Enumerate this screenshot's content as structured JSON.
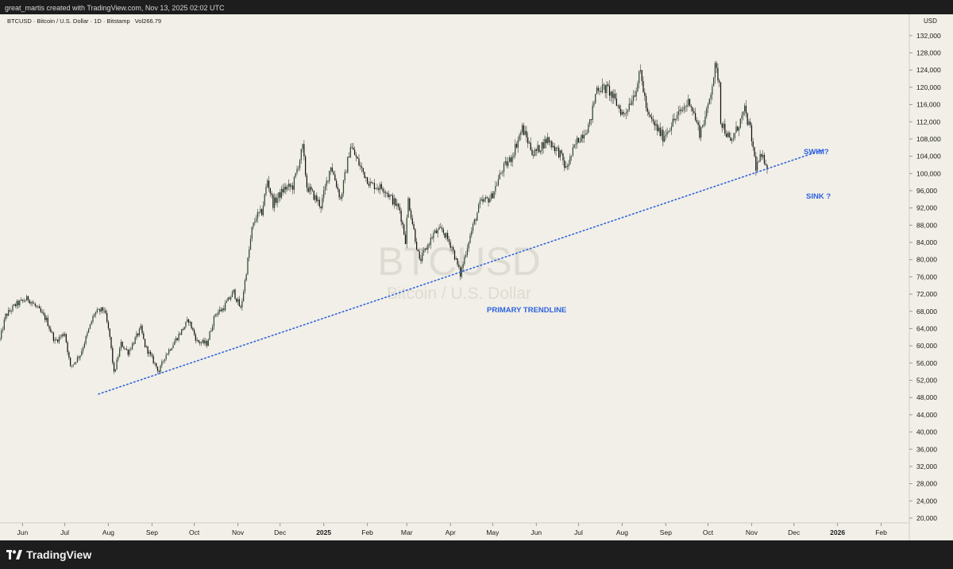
{
  "header": {
    "credit": "great_martis created with TradingView.com, Nov 13, 2025 02:02 UTC"
  },
  "symbol": {
    "info": "BTCUSD · Bitcoin / U.S. Dollar · 1D · Bitstamp",
    "volume_label": "Vol266.79"
  },
  "watermark": {
    "ticker": "BTCUSD",
    "name": "Bitcoin / U.S. Dollar"
  },
  "price_scale": {
    "currency": "USD"
  },
  "annotations": {
    "trendline_label": "PRIMARY TRENDLINE",
    "swim_label": "SWIM?",
    "sink_label": "SINK ?"
  },
  "colors": {
    "background": "#f1efe7",
    "candle_up": "#2e4a2e",
    "candle_down": "#111111",
    "wick": "#555555",
    "annotation_blue": "#2f62e0",
    "watermark": "#d9d6cd"
  },
  "footer": {
    "logo_text": "TradingView"
  },
  "chart_data": {
    "type": "candlestick",
    "interval": "1D",
    "price_range": [
      20000,
      134000
    ],
    "y_ticks": [
      20000,
      24000,
      28000,
      32000,
      36000,
      40000,
      44000,
      48000,
      52000,
      56000,
      60000,
      64000,
      68000,
      72000,
      76000,
      80000,
      84000,
      88000,
      92000,
      96000,
      100000,
      104000,
      108000,
      112000,
      116000,
      120000,
      124000,
      128000,
      132000
    ],
    "y_tick_labels": [
      "20,000",
      "24,000",
      "28,000",
      "32,000",
      "36,000",
      "40,000",
      "44,000",
      "48,000",
      "52,000",
      "56,000",
      "60,000",
      "64,000",
      "68,000",
      "72,000",
      "76,000",
      "80,000",
      "84,000",
      "88,000",
      "92,000",
      "96,000",
      "100,000",
      "104,000",
      "108,000",
      "112,000",
      "116,000",
      "120,000",
      "124,000",
      "128,000",
      "132,000"
    ],
    "x_range": [
      "2024-05-16",
      "2026-02-21"
    ],
    "x_ticks": [
      {
        "date": "2024-06-01",
        "label": "Jun",
        "bold": false
      },
      {
        "date": "2024-07-01",
        "label": "Jul",
        "bold": false
      },
      {
        "date": "2024-08-01",
        "label": "Aug",
        "bold": false
      },
      {
        "date": "2024-09-01",
        "label": "Sep",
        "bold": false
      },
      {
        "date": "2024-10-01",
        "label": "Oct",
        "bold": false
      },
      {
        "date": "2024-11-01",
        "label": "Nov",
        "bold": false
      },
      {
        "date": "2024-12-01",
        "label": "Dec",
        "bold": false
      },
      {
        "date": "2025-01-01",
        "label": "2025",
        "bold": true
      },
      {
        "date": "2025-02-01",
        "label": "Feb",
        "bold": false
      },
      {
        "date": "2025-03-01",
        "label": "Mar",
        "bold": false
      },
      {
        "date": "2025-04-01",
        "label": "Apr",
        "bold": false
      },
      {
        "date": "2025-05-01",
        "label": "May",
        "bold": false
      },
      {
        "date": "2025-06-01",
        "label": "Jun",
        "bold": false
      },
      {
        "date": "2025-07-01",
        "label": "Jul",
        "bold": false
      },
      {
        "date": "2025-08-01",
        "label": "Aug",
        "bold": false
      },
      {
        "date": "2025-09-01",
        "label": "Sep",
        "bold": false
      },
      {
        "date": "2025-10-01",
        "label": "Oct",
        "bold": false
      },
      {
        "date": "2025-11-01",
        "label": "Nov",
        "bold": false
      },
      {
        "date": "2025-12-01",
        "label": "Dec",
        "bold": false
      },
      {
        "date": "2026-01-01",
        "label": "2026",
        "bold": true
      },
      {
        "date": "2026-02-01",
        "label": "Feb",
        "bold": false
      }
    ],
    "price_path": [
      [
        "2024-05-16",
        61500
      ],
      [
        "2024-05-20",
        67000
      ],
      [
        "2024-05-27",
        69500
      ],
      [
        "2024-06-05",
        71000
      ],
      [
        "2024-06-12",
        68500
      ],
      [
        "2024-06-18",
        66000
      ],
      [
        "2024-06-24",
        61000
      ],
      [
        "2024-07-01",
        63000
      ],
      [
        "2024-07-05",
        55000
      ],
      [
        "2024-07-12",
        58000
      ],
      [
        "2024-07-22",
        67500
      ],
      [
        "2024-07-29",
        68500
      ],
      [
        "2024-08-02",
        62000
      ],
      [
        "2024-08-05",
        53500
      ],
      [
        "2024-08-10",
        60500
      ],
      [
        "2024-08-15",
        58500
      ],
      [
        "2024-08-24",
        64000
      ],
      [
        "2024-08-27",
        60000
      ],
      [
        "2024-09-06",
        54000
      ],
      [
        "2024-09-10",
        57500
      ],
      [
        "2024-09-19",
        62000
      ],
      [
        "2024-09-27",
        66000
      ],
      [
        "2024-10-03",
        61000
      ],
      [
        "2024-10-10",
        60500
      ],
      [
        "2024-10-16",
        67500
      ],
      [
        "2024-10-21",
        68500
      ],
      [
        "2024-10-29",
        72500
      ],
      [
        "2024-11-03",
        68500
      ],
      [
        "2024-11-06",
        75000
      ],
      [
        "2024-11-11",
        87000
      ],
      [
        "2024-11-14",
        90000
      ],
      [
        "2024-11-18",
        91000
      ],
      [
        "2024-11-22",
        98500
      ],
      [
        "2024-11-26",
        93000
      ],
      [
        "2024-12-04",
        96500
      ],
      [
        "2024-12-10",
        97000
      ],
      [
        "2024-12-17",
        106000
      ],
      [
        "2024-12-20",
        97000
      ],
      [
        "2024-12-30",
        92500
      ],
      [
        "2025-01-06",
        102000
      ],
      [
        "2025-01-13",
        94000
      ],
      [
        "2025-01-20",
        106500
      ],
      [
        "2025-01-27",
        101500
      ],
      [
        "2025-02-03",
        97500
      ],
      [
        "2025-02-13",
        96500
      ],
      [
        "2025-02-24",
        91500
      ],
      [
        "2025-02-28",
        84500
      ],
      [
        "2025-03-02",
        94000
      ],
      [
        "2025-03-10",
        79500
      ],
      [
        "2025-03-20",
        86000
      ],
      [
        "2025-03-26",
        87000
      ],
      [
        "2025-04-02",
        83000
      ],
      [
        "2025-04-08",
        76500
      ],
      [
        "2025-04-14",
        84500
      ],
      [
        "2025-04-22",
        93000
      ],
      [
        "2025-04-30",
        94500
      ],
      [
        "2025-05-08",
        101000
      ],
      [
        "2025-05-14",
        103500
      ],
      [
        "2025-05-22",
        110500
      ],
      [
        "2025-05-30",
        104500
      ],
      [
        "2025-06-09",
        108000
      ],
      [
        "2025-06-18",
        104500
      ],
      [
        "2025-06-22",
        101000
      ],
      [
        "2025-06-30",
        107500
      ],
      [
        "2025-07-09",
        111500
      ],
      [
        "2025-07-14",
        120000
      ],
      [
        "2025-07-22",
        119500
      ],
      [
        "2025-08-02",
        113500
      ],
      [
        "2025-08-10",
        119000
      ],
      [
        "2025-08-14",
        123500
      ],
      [
        "2025-08-19",
        113500
      ],
      [
        "2025-08-30",
        108500
      ],
      [
        "2025-09-05",
        111500
      ],
      [
        "2025-09-18",
        117000
      ],
      [
        "2025-09-25",
        109500
      ],
      [
        "2025-09-30",
        114000
      ],
      [
        "2025-10-06",
        124500
      ],
      [
        "2025-10-09",
        121500
      ],
      [
        "2025-10-10",
        112500
      ],
      [
        "2025-10-17",
        107000
      ],
      [
        "2025-10-27",
        114500
      ],
      [
        "2025-10-31",
        110000
      ],
      [
        "2025-11-04",
        101500
      ],
      [
        "2025-11-07",
        103500
      ],
      [
        "2025-11-11",
        103000
      ],
      [
        "2025-11-12",
        101500
      ]
    ],
    "trendline": {
      "from": [
        "2024-07-25",
        48800
      ],
      "to": [
        "2025-12-22",
        105500
      ],
      "style": "dotted",
      "color": "#2f62e0"
    },
    "grid": false,
    "legend": "none"
  }
}
